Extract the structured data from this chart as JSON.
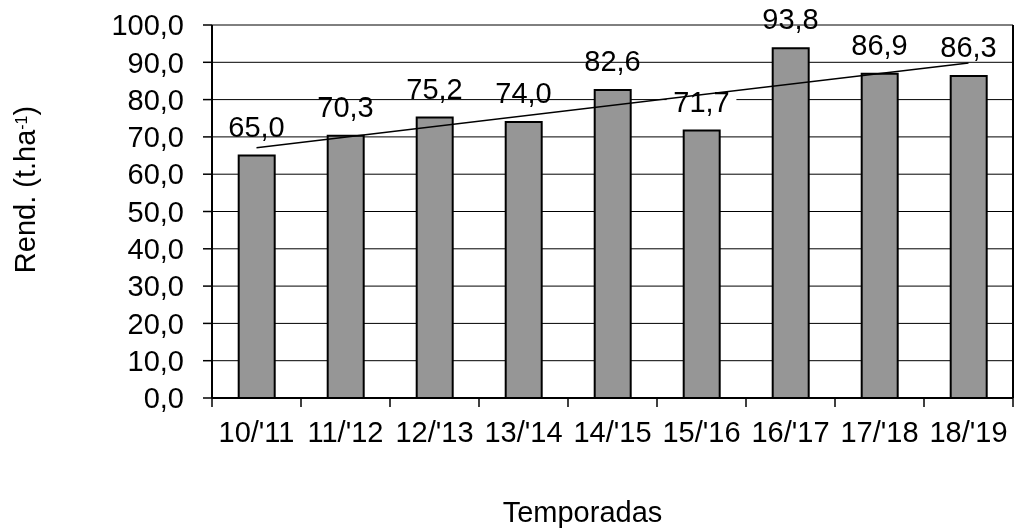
{
  "chart_data": {
    "type": "bar",
    "xlabel": "Temporadas",
    "ylabel": "Rend. (t.ha$^{-1}$)",
    "categories": [
      "10/'11",
      "11/'12",
      "12/'13",
      "13/'14",
      "14/'15",
      "15/'16",
      "16/'17",
      "17/'18",
      "18/'19"
    ],
    "series": [
      {
        "color": "#969696",
        "values": [
          65.0,
          70.3,
          75.2,
          74.0,
          82.6,
          71.7,
          93.8,
          86.9,
          86.3
        ],
        "value_labels": [
          "65,0",
          "70,3",
          "75,2",
          "74,0",
          "82,6",
          "71,7",
          "93,8",
          "86,9",
          "86,3"
        ]
      },
      {
        "type": "line",
        "x": [
          "10/'11",
          "18/'19"
        ],
        "values": [
          67.1,
          89.8
        ],
        "color": "#000000",
        "marker": "none"
      }
    ],
    "ylim": [
      0,
      100
    ],
    "yticks": [
      {
        "value": 0,
        "label": "0,0"
      },
      {
        "value": 10,
        "label": "10,0"
      },
      {
        "value": 20,
        "label": "20,0"
      },
      {
        "value": 30,
        "label": "30,0"
      },
      {
        "value": 40,
        "label": "40,0"
      },
      {
        "value": 50,
        "label": "50,0"
      },
      {
        "value": 60,
        "label": "60,0"
      },
      {
        "value": 70,
        "label": "70,0"
      },
      {
        "value": 80,
        "label": "80,0"
      },
      {
        "value": 90,
        "label": "90,0"
      },
      {
        "value": 100,
        "label": "100,0"
      }
    ],
    "grid": "y"
  }
}
